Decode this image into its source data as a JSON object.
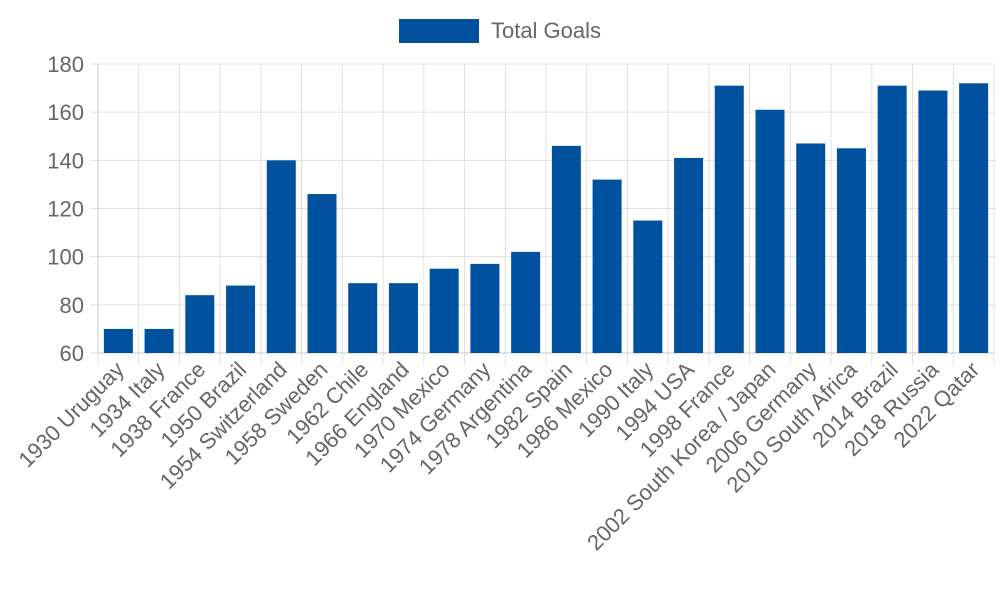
{
  "chart_data": {
    "type": "bar",
    "categories": [
      "1930 Uruguay",
      "1934 Italy",
      "1938 France",
      "1950 Brazil",
      "1954 Switzerland",
      "1958 Sweden",
      "1962 Chile",
      "1966 England",
      "1970 Mexico",
      "1974 Germany",
      "1978 Argentina",
      "1982 Spain",
      "1986 Mexico",
      "1990 Italy",
      "1994 USA",
      "1998 France",
      "2002 South Korea / Japan",
      "2006 Germany",
      "2010 South Africa",
      "2014 Brazil",
      "2018 Russia",
      "2022 Qatar"
    ],
    "series": [
      {
        "name": "Total Goals",
        "color": "#00529F",
        "values": [
          70,
          70,
          84,
          88,
          140,
          126,
          89,
          89,
          95,
          97,
          102,
          146,
          132,
          115,
          141,
          171,
          161,
          147,
          145,
          171,
          169,
          172
        ]
      }
    ],
    "ylim": [
      60,
      180
    ],
    "yticks": [
      60,
      80,
      100,
      120,
      140,
      160,
      180
    ],
    "grid": true,
    "legend_position": "top-center",
    "title": "",
    "xlabel": "",
    "ylabel": ""
  }
}
